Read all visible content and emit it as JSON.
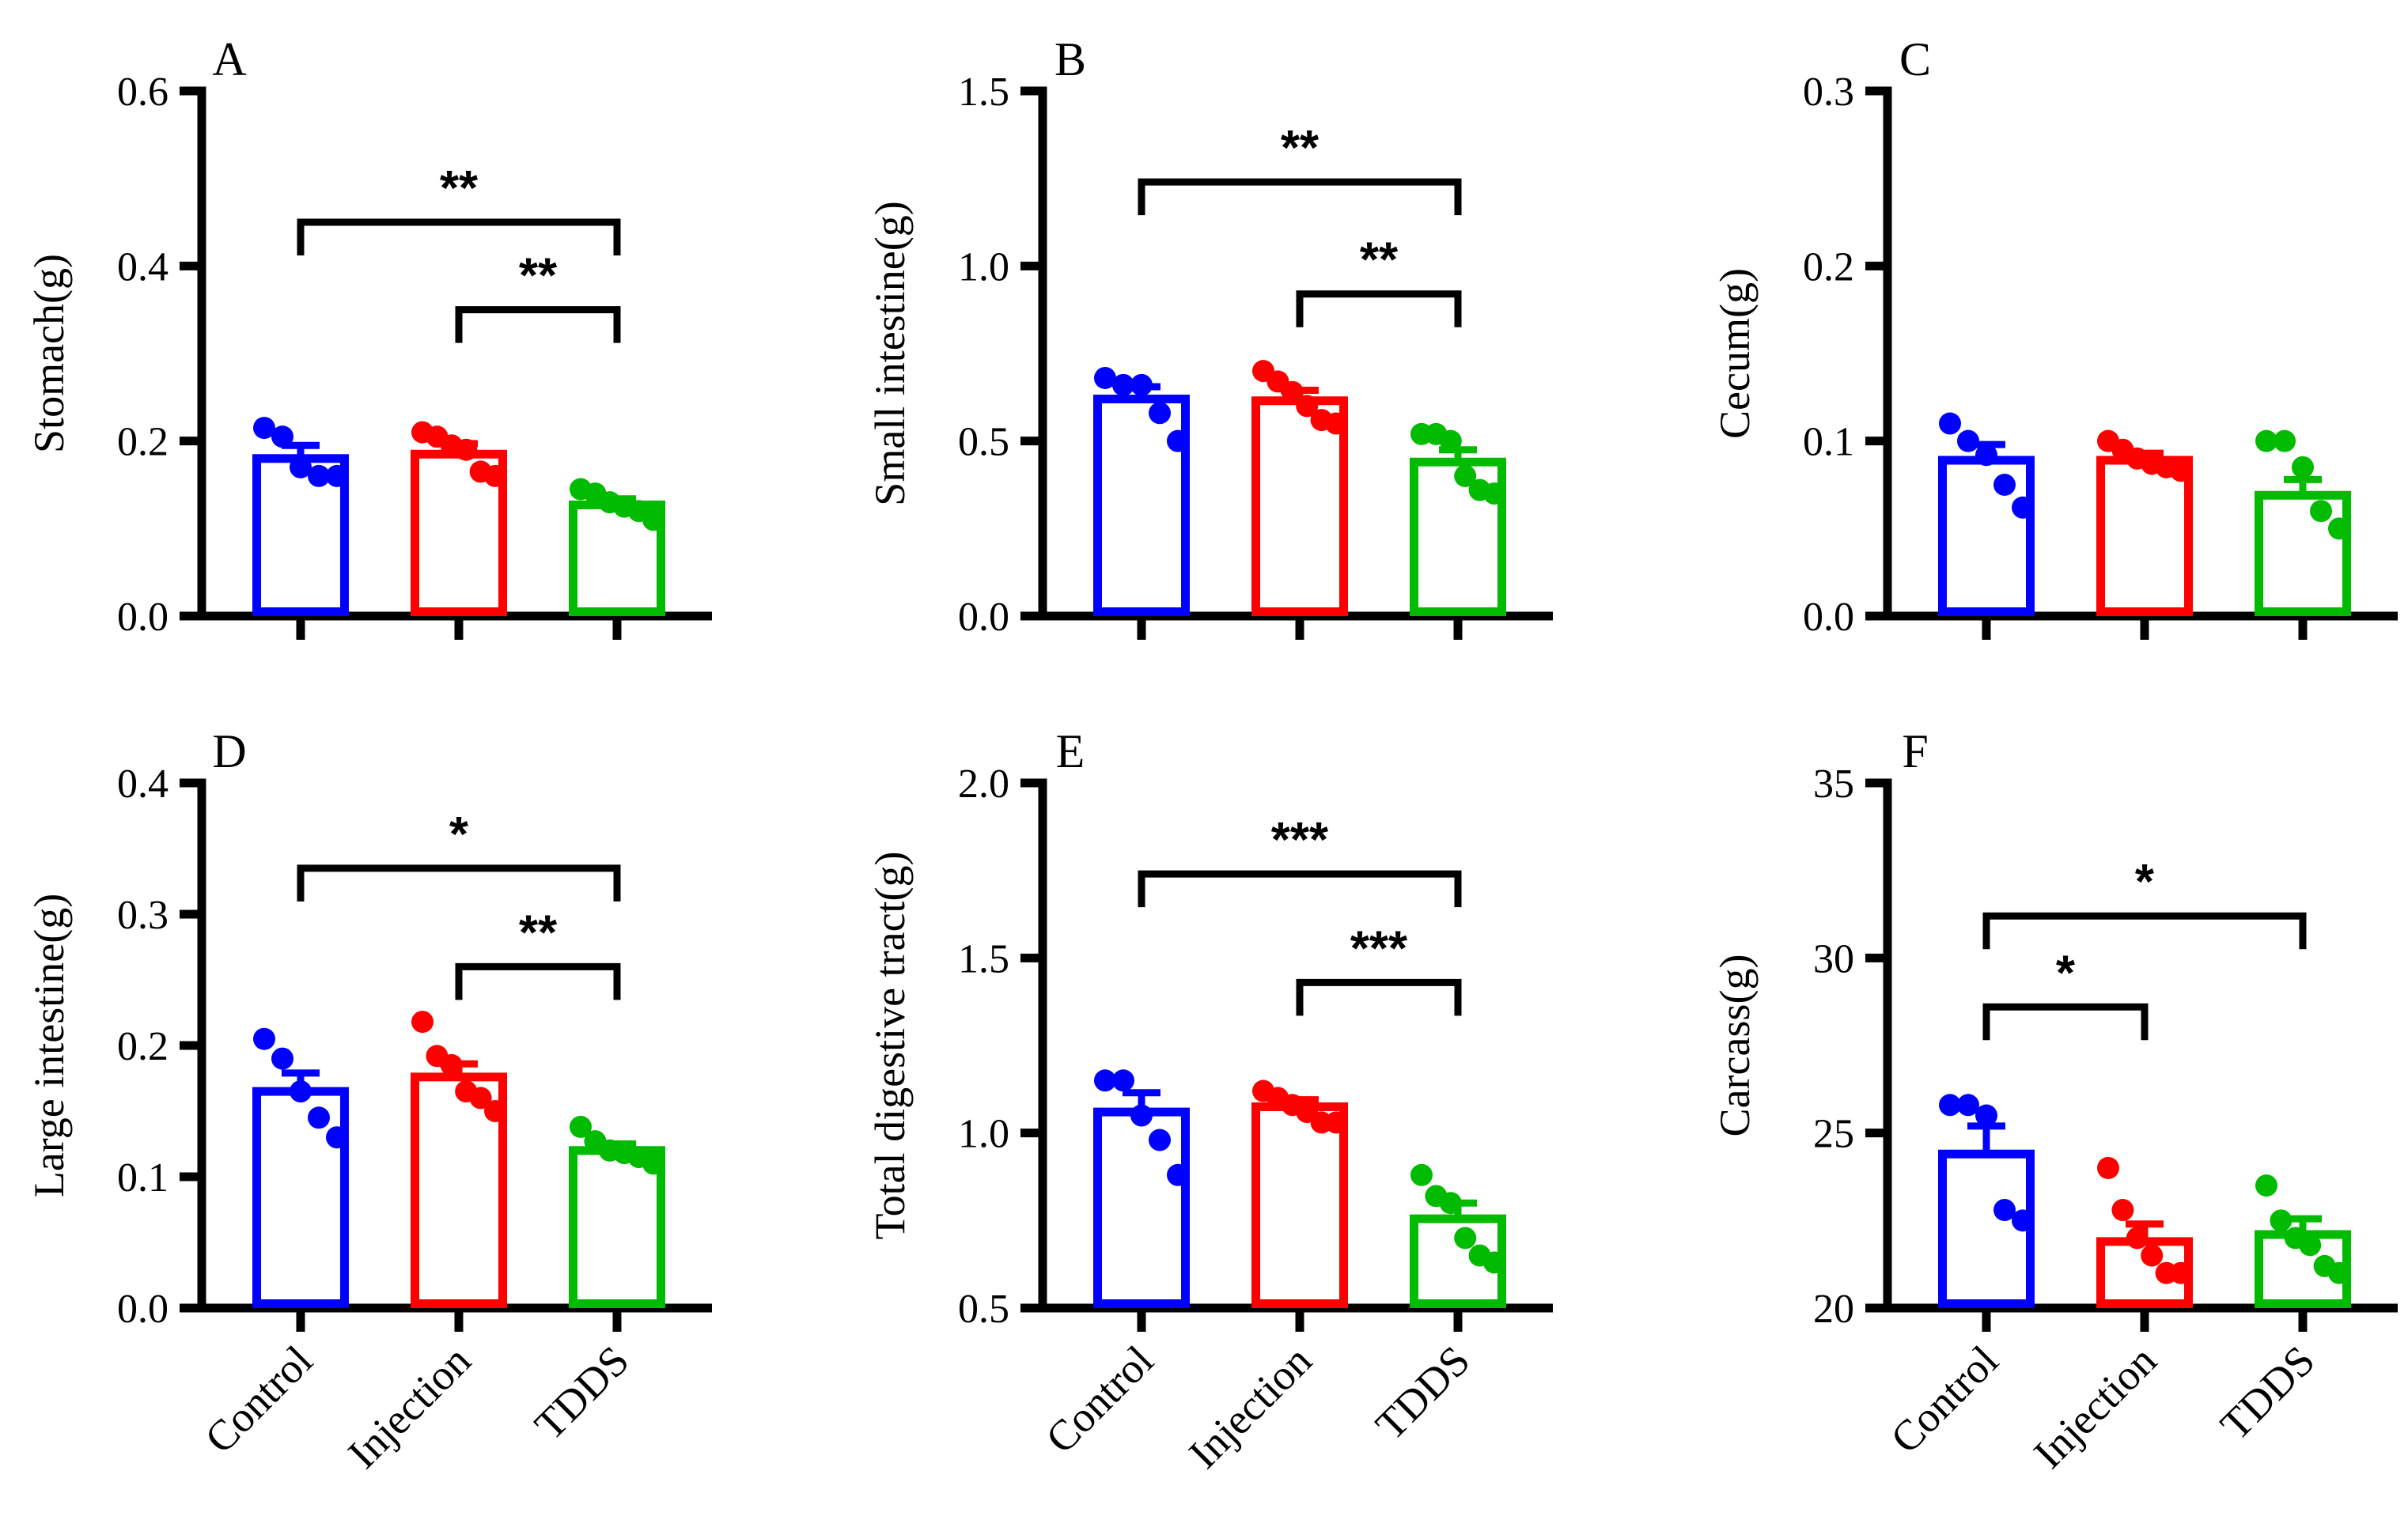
{
  "colors": {
    "Control": "#0000ff",
    "Injection": "#ff0000",
    "TDDS": "#00bb00",
    "axis": "#000000"
  },
  "chart_data": [
    {
      "type": "bar",
      "panel": "A",
      "ylabel": "Stomach(g)",
      "ylim": [
        0,
        0.6
      ],
      "yticks": [
        "0.0",
        "0.2",
        "0.4",
        "0.6"
      ],
      "categories": [
        "Control",
        "Injection",
        "TDDS"
      ],
      "values": [
        0.18,
        0.185,
        0.127
      ],
      "errors": [
        0.015,
        0.012,
        0.007
      ],
      "points": [
        [
          0.215,
          0.205,
          0.17,
          0.16,
          0.16
        ],
        [
          0.21,
          0.205,
          0.195,
          0.19,
          0.165,
          0.16
        ],
        [
          0.145,
          0.14,
          0.13,
          0.125,
          0.12,
          0.11
        ]
      ],
      "significance": [
        {
          "from": "Control",
          "to": "TDDS",
          "label": "**",
          "y": 0.45
        },
        {
          "from": "Injection",
          "to": "TDDS",
          "label": "**",
          "y": 0.35
        }
      ]
    },
    {
      "type": "bar",
      "panel": "B",
      "ylabel": "Small intestine(g)",
      "ylim": [
        0,
        1.5
      ],
      "yticks": [
        "0.0",
        "0.5",
        "1.0",
        "1.5"
      ],
      "categories": [
        "Control",
        "Injection",
        "TDDS"
      ],
      "values": [
        0.62,
        0.615,
        0.44
      ],
      "errors": [
        0.035,
        0.03,
        0.035
      ],
      "points": [
        [
          0.68,
          0.66,
          0.66,
          0.58,
          0.5
        ],
        [
          0.7,
          0.67,
          0.64,
          0.6,
          0.56,
          0.55
        ],
        [
          0.52,
          0.52,
          0.5,
          0.4,
          0.36,
          0.35
        ]
      ],
      "significance": [
        {
          "from": "Control",
          "to": "TDDS",
          "label": "**",
          "y": 1.24
        },
        {
          "from": "Injection",
          "to": "TDDS",
          "label": "**",
          "y": 0.92
        }
      ]
    },
    {
      "type": "bar",
      "panel": "C",
      "ylabel": "Cecum(g)",
      "ylim": [
        0,
        0.3
      ],
      "yticks": [
        "0.0",
        "0.1",
        "0.2",
        "0.3"
      ],
      "categories": [
        "Control",
        "Injection",
        "TDDS"
      ],
      "values": [
        0.089,
        0.089,
        0.069
      ],
      "errors": [
        0.009,
        0.004,
        0.009
      ],
      "points": [
        [
          0.11,
          0.1,
          0.092,
          0.075,
          0.062
        ],
        [
          0.1,
          0.095,
          0.09,
          0.087,
          0.085,
          0.083
        ],
        [
          0.1,
          0.1,
          0.085,
          0.06,
          0.05
        ]
      ],
      "significance": []
    },
    {
      "type": "bar",
      "panel": "D",
      "ylabel": "Large intestine(g)",
      "ylim": [
        0,
        0.4
      ],
      "yticks": [
        "0.0",
        "0.1",
        "0.2",
        "0.3",
        "0.4"
      ],
      "categories": [
        "Control",
        "Injection",
        "TDDS"
      ],
      "values": [
        0.165,
        0.176,
        0.12
      ],
      "errors": [
        0.014,
        0.01,
        0.005
      ],
      "points": [
        [
          0.205,
          0.19,
          0.165,
          0.145,
          0.13
        ],
        [
          0.218,
          0.192,
          0.185,
          0.165,
          0.16,
          0.15
        ],
        [
          0.138,
          0.127,
          0.12,
          0.118,
          0.115,
          0.11
        ]
      ],
      "significance": [
        {
          "from": "Control",
          "to": "TDDS",
          "label": "*",
          "y": 0.335
        },
        {
          "from": "Injection",
          "to": "TDDS",
          "label": "**",
          "y": 0.26
        }
      ]
    },
    {
      "type": "bar",
      "panel": "E",
      "ylabel": "Total digestive tract(g)",
      "ylim": [
        0.5,
        2.0
      ],
      "yticks": [
        "0.5",
        "1.0",
        "1.5",
        "2.0"
      ],
      "categories": [
        "Control",
        "Injection",
        "TDDS"
      ],
      "values": [
        1.06,
        1.075,
        0.755
      ],
      "errors": [
        0.055,
        0.02,
        0.045
      ],
      "points": [
        [
          1.15,
          1.15,
          1.05,
          0.98,
          0.88
        ],
        [
          1.12,
          1.1,
          1.08,
          1.06,
          1.03,
          1.03
        ],
        [
          0.88,
          0.82,
          0.8,
          0.7,
          0.65,
          0.63
        ]
      ],
      "significance": [
        {
          "from": "Control",
          "to": "TDDS",
          "label": "***",
          "y": 1.74
        },
        {
          "from": "Injection",
          "to": "TDDS",
          "label": "***",
          "y": 1.43
        }
      ]
    },
    {
      "type": "bar",
      "panel": "F",
      "ylabel": "Carcass(g)",
      "ylim": [
        20,
        35
      ],
      "yticks": [
        "20",
        "25",
        "30",
        "35"
      ],
      "categories": [
        "Control",
        "Injection",
        "TDDS"
      ],
      "values": [
        24.4,
        21.9,
        22.1
      ],
      "errors": [
        0.8,
        0.5,
        0.45
      ],
      "points": [
        [
          25.8,
          25.8,
          25.5,
          22.8,
          22.5
        ],
        [
          24.0,
          22.8,
          22.0,
          21.5,
          21.0,
          21.0
        ],
        [
          23.5,
          22.5,
          22.0,
          21.8,
          21.2,
          21.0
        ]
      ],
      "significance": [
        {
          "from": "Control",
          "to": "TDDS",
          "label": "*",
          "y": 31.2
        },
        {
          "from": "Control",
          "to": "Injection",
          "label": "*",
          "y": 28.6
        }
      ]
    }
  ]
}
